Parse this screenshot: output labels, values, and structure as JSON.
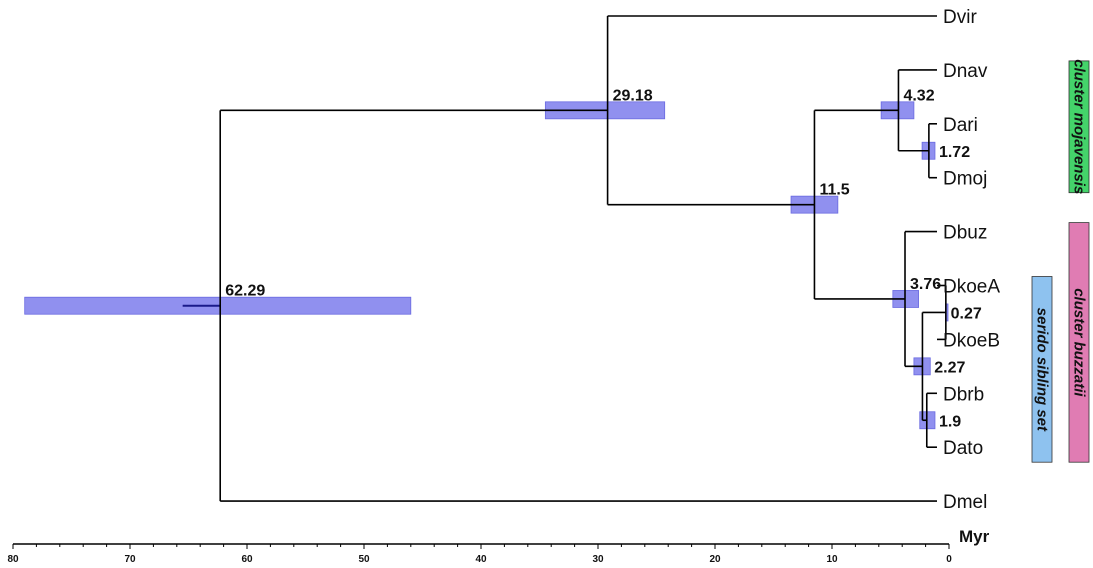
{
  "taxa": [
    "Dvir",
    "Dnav",
    "Dari",
    "Dmoj",
    "Dbuz",
    "DkoeA",
    "DkoeB",
    "Dbrb",
    "Dato",
    "Dmel"
  ],
  "nodes": [
    {
      "id": "n62",
      "label": "62.29",
      "age": 62.29,
      "ci": [
        79,
        46
      ],
      "children": [
        "n29",
        "Dmel"
      ]
    },
    {
      "id": "n29",
      "label": "29.18",
      "age": 29.18,
      "ci": [
        34.5,
        24.3
      ],
      "children": [
        "Dvir",
        "n11"
      ]
    },
    {
      "id": "n11",
      "label": "11.5",
      "age": 11.5,
      "ci": [
        13.5,
        9.5
      ],
      "children": [
        "n4",
        "n376"
      ]
    },
    {
      "id": "n4",
      "label": "4.32",
      "age": 4.32,
      "ci": [
        5.8,
        3.0
      ],
      "children": [
        "Dnav",
        "n172"
      ]
    },
    {
      "id": "n172",
      "label": "1.72",
      "age": 1.72,
      "ci": [
        2.3,
        1.2
      ],
      "children": [
        "Dari",
        "Dmoj"
      ]
    },
    {
      "id": "n376",
      "label": "3.76",
      "age": 3.76,
      "ci": [
        4.8,
        2.6
      ],
      "children": [
        "Dbuz",
        "n227"
      ]
    },
    {
      "id": "n227",
      "label": "2.27",
      "age": 2.27,
      "ci": [
        3.0,
        1.6
      ],
      "children": [
        "n027",
        "n19"
      ]
    },
    {
      "id": "n027",
      "label": "0.27",
      "age": 0.27,
      "ci": [
        0.3,
        0.2
      ],
      "children": [
        "DkoeA",
        "DkoeB"
      ]
    },
    {
      "id": "n19",
      "label": "1.9",
      "age": 1.9,
      "ci": [
        2.5,
        1.2
      ],
      "children": [
        "Dbrb",
        "Dato"
      ]
    }
  ],
  "axis": {
    "ticks": [
      "80",
      "70",
      "60",
      "50",
      "40",
      "30",
      "20",
      "10",
      "0"
    ],
    "tick_values": [
      80,
      70,
      60,
      50,
      40,
      30,
      20,
      10,
      0
    ],
    "unit": "Myr",
    "range": [
      80,
      0
    ]
  },
  "clades": [
    {
      "name": "cluster mojavensis",
      "color": "#44d36a",
      "from": "Dnav",
      "to": "Dmoj"
    },
    {
      "name": "cluster buzzatii",
      "color": "#e07cb3",
      "from": "Dbuz",
      "to": "Dato"
    },
    {
      "name": "serido sibling set",
      "color": "#8ec2ef",
      "from": "DkoeA",
      "to": "Dato"
    }
  ],
  "colors": {
    "ci_bar": "#8a8aee",
    "branch": "#000000"
  }
}
